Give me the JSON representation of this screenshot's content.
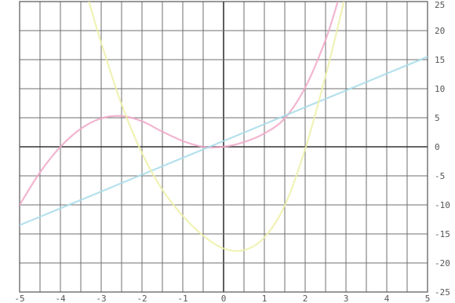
{
  "chart_data": {
    "type": "line",
    "title": "",
    "xlabel": "",
    "ylabel": "",
    "xlim": [
      -5,
      5
    ],
    "ylim": [
      -25,
      25
    ],
    "grid": true,
    "y_axis_side": "right",
    "x_ticks": [
      -5,
      -4,
      -3,
      -2,
      -1,
      0,
      1,
      2,
      3,
      4,
      5
    ],
    "x_tick_labels": [
      "-5",
      "-4",
      "-3",
      "-2",
      "-1",
      "0",
      "1",
      "2",
      "3",
      "4",
      "5"
    ],
    "y_ticks": [
      25,
      20,
      15,
      10,
      5,
      0,
      -5,
      -10,
      -15,
      -20,
      -25
    ],
    "y_tick_labels": [
      "25",
      "20",
      "15",
      "10",
      "5",
      "0",
      "-5",
      "-10",
      "-15",
      "-20",
      "-25"
    ],
    "series": [
      {
        "color": "#f0a8c8",
        "x": [
          -5,
          -4.5,
          -4,
          -3.5,
          -3,
          -2.5,
          -2,
          -1.5,
          -1,
          -0.5,
          0,
          0.5,
          1,
          1.5,
          2,
          2.5,
          2.8
        ],
        "y": [
          -10,
          -4.4,
          0,
          3.1,
          4.9,
          5.3,
          4.4,
          2.6,
          1,
          0,
          0,
          0.8,
          2.3,
          4.9,
          10.2,
          18.4,
          25
        ]
      },
      {
        "color": "#a8dcea",
        "x": [
          -5,
          -4,
          -3,
          -2,
          -1,
          0,
          1,
          2,
          3,
          4,
          5
        ],
        "y": [
          -13.5,
          -10.6,
          -7.7,
          -4.8,
          -1.9,
          1,
          3.9,
          6.8,
          9.7,
          12.6,
          15.5
        ]
      },
      {
        "color": "#eef0a8",
        "x": [
          -3.3,
          -3,
          -2.5,
          -2,
          -1.5,
          -1,
          -0.5,
          0,
          0.5,
          1,
          1.5,
          2,
          2.5,
          3,
          3.2
        ],
        "y": [
          25,
          17.9,
          7.3,
          -1.1,
          -7.4,
          -11.9,
          -15.3,
          -17.5,
          -17.8,
          -15.6,
          -10.1,
          -0.4,
          12.2,
          26.5,
          33
        ]
      }
    ]
  }
}
